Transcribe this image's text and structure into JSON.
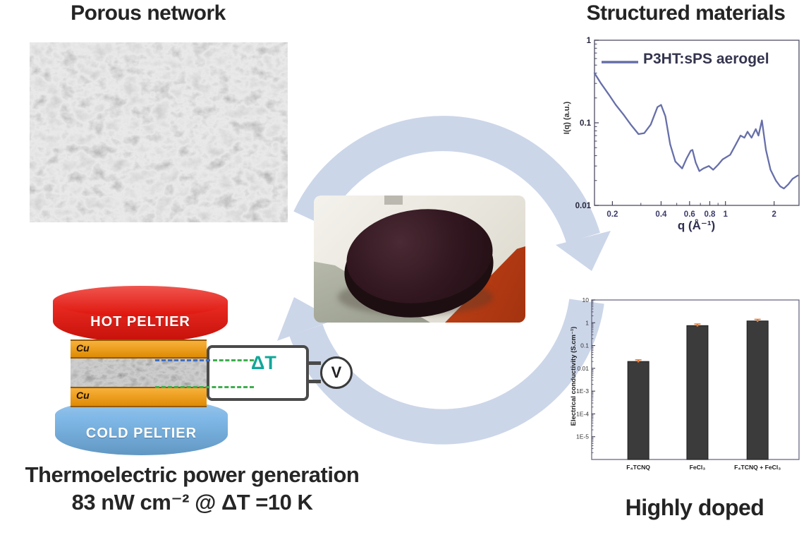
{
  "titles": {
    "porous": "Porous network",
    "structured": "Structured materials",
    "highly_doped": "Highly doped"
  },
  "caption": {
    "line1": "Thermoelectric power generation",
    "line2": "83 nW cm⁻² @ ΔT =10 K"
  },
  "device": {
    "hot_label": "HOT PELTIER",
    "cold_label": "COLD PELTIER",
    "cu_top_label": "Cu",
    "cu_bottom_label": "Cu",
    "delta_t_label": "ΔT",
    "voltmeter_label": "V"
  },
  "colors": {
    "arrow_blue": "#ccd6e9",
    "hot_red": "#ea140b",
    "cold_blue": "#74b4e8",
    "cu_orange": "#f79b04",
    "delta_teal": "#12a79a",
    "dash_green": "#3fae4e",
    "dash_blue": "#3e6fc4",
    "line_blue": "#666fa9",
    "bar_dark": "#3b3b3b",
    "error_orange": "#e8762c"
  },
  "chart_data": [
    {
      "type": "line",
      "legend_label": "P3HT:sPS aerogel",
      "xlabel": "q (Å⁻¹)",
      "ylabel": "I(q) (a.u.)",
      "xscale": "log",
      "yscale": "log",
      "xlim": [
        0.155,
        2.85
      ],
      "ylim": [
        0.01,
        1
      ],
      "xtick_values": [
        0.2,
        0.4,
        0.6,
        0.8,
        1,
        2
      ],
      "xtick_labels": [
        "0.2",
        "0.4",
        "0.6",
        "0.8",
        "1",
        "2"
      ],
      "xticks_minor": [
        0.3,
        0.5,
        0.7,
        0.9
      ],
      "ytick_values": [
        1,
        0.1,
        0.01
      ],
      "ytick_labels": [
        "1",
        "0.1",
        "0.01"
      ],
      "tick_color": "#3a3a6b",
      "line_color": "#666fa9",
      "grid": false,
      "legend_position": "top-inside",
      "series": [
        {
          "name": "P3HT:sPS aerogel",
          "x": [
            0.155,
            0.17,
            0.19,
            0.21,
            0.235,
            0.26,
            0.29,
            0.315,
            0.345,
            0.38,
            0.4,
            0.425,
            0.455,
            0.49,
            0.54,
            0.575,
            0.61,
            0.625,
            0.655,
            0.69,
            0.73,
            0.79,
            0.84,
            0.9,
            0.96,
            1.07,
            1.16,
            1.24,
            1.31,
            1.37,
            1.45,
            1.54,
            1.6,
            1.68,
            1.78,
            1.9,
            2.05,
            2.18,
            2.3,
            2.45,
            2.6,
            2.8
          ],
          "y": [
            0.4,
            0.3,
            0.22,
            0.165,
            0.125,
            0.095,
            0.073,
            0.075,
            0.095,
            0.155,
            0.165,
            0.12,
            0.055,
            0.034,
            0.028,
            0.037,
            0.046,
            0.047,
            0.033,
            0.026,
            0.028,
            0.03,
            0.027,
            0.031,
            0.036,
            0.041,
            0.055,
            0.07,
            0.066,
            0.078,
            0.066,
            0.084,
            0.07,
            0.107,
            0.047,
            0.027,
            0.02,
            0.017,
            0.016,
            0.018,
            0.021,
            0.023
          ]
        }
      ]
    },
    {
      "type": "bar",
      "ylabel": "Electrical conductivity (S.cm⁻¹)",
      "yscale": "log",
      "ylim": [
        1e-06,
        10
      ],
      "categories": [
        "F₄TCNQ",
        "FeCl₃",
        "F₄TCNQ + FeCl₃"
      ],
      "values": [
        0.02,
        0.75,
        1.2
      ],
      "error_rel": 0.18,
      "ytick_values": [
        10,
        1,
        0.1,
        0.01,
        0.001,
        0.0001,
        1e-05
      ],
      "ytick_labels": [
        "10",
        "1",
        "0.1",
        "0.01",
        "1E-3",
        "1E-4",
        "1E-5"
      ],
      "bar_color": "#3b3b3b",
      "error_color": "#e8762c",
      "bar_centers_frac": [
        0.225,
        0.51,
        0.8
      ],
      "grid": false
    }
  ]
}
